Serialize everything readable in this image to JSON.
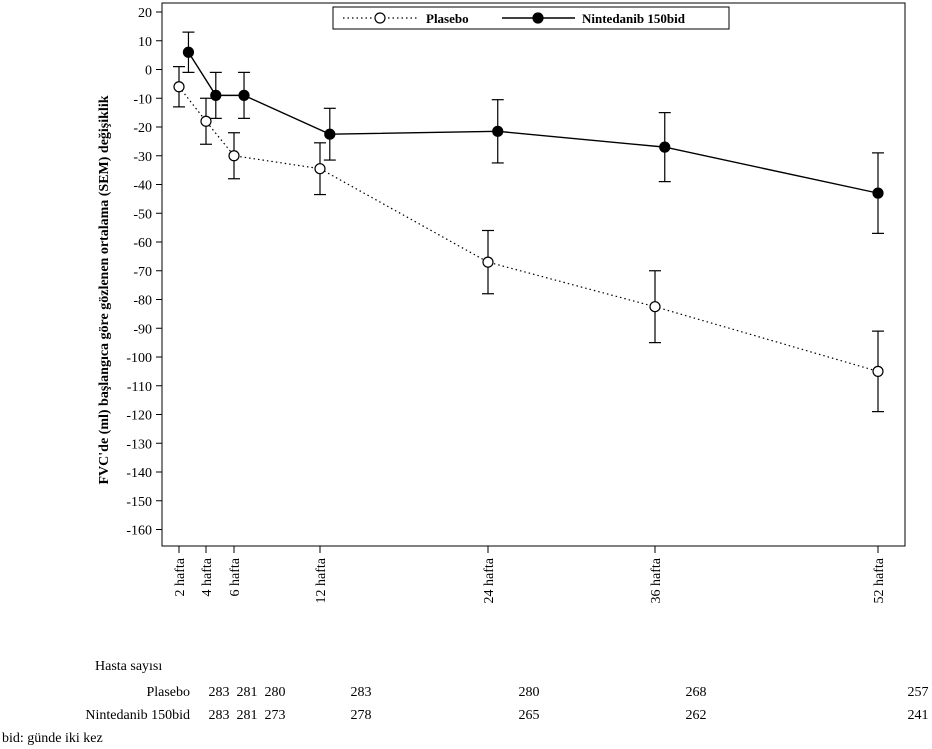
{
  "chart_data": {
    "type": "line",
    "title": "",
    "xlabel": "",
    "ylabel": "FVC'de (ml) başlangıca göre gözlenen ortalama (SEM) değişiklik",
    "ylim": [
      -165,
      22
    ],
    "yticks": [
      20,
      10,
      0,
      -10,
      -20,
      -30,
      -40,
      -50,
      -60,
      -70,
      -80,
      -90,
      -100,
      -110,
      -120,
      -130,
      -140,
      -150,
      -160
    ],
    "xlim": [
      0,
      52
    ],
    "xticks": [
      {
        "week": 2,
        "label": "2 hafta"
      },
      {
        "week": 4,
        "label": "4 hafta"
      },
      {
        "week": 6,
        "label": "6 hafta"
      },
      {
        "week": 12,
        "label": "12 hafta"
      },
      {
        "week": 24,
        "label": "24 hafta"
      },
      {
        "week": 36,
        "label": "36 hafta"
      },
      {
        "week": 52,
        "label": "52 hafta"
      }
    ],
    "grid": false,
    "legend": "top-center",
    "series": [
      {
        "name": "Plasebo",
        "style": "dotted",
        "marker": "open-circle",
        "x": [
          2,
          4,
          6,
          12,
          24,
          36,
          52
        ],
        "y": [
          -6,
          -18,
          -30,
          -34.5,
          -67,
          -82.5,
          -105
        ],
        "err": [
          7,
          8,
          8,
          9,
          11,
          12.5,
          14
        ]
      },
      {
        "name": "Nintedanib 150bid",
        "style": "solid",
        "marker": "filled-circle",
        "x": [
          2.7,
          4.7,
          6.7,
          12.7,
          24.7,
          36.7,
          52.7
        ],
        "y": [
          6,
          -9,
          -9,
          -22.5,
          -21.5,
          -27,
          -43
        ],
        "err": [
          7,
          8,
          8,
          9,
          11,
          12,
          14
        ]
      }
    ]
  },
  "risk_table": {
    "header": "Hasta sayısı",
    "rows": [
      {
        "label": "Plasebo",
        "values": [
          "283",
          "281",
          "280",
          "283",
          "280",
          "268",
          "257"
        ]
      },
      {
        "label": "Nintedanib 150bid",
        "values": [
          "283",
          "281",
          "273",
          "278",
          "265",
          "262",
          "241"
        ]
      }
    ]
  },
  "footnote": "bid: günde iki kez"
}
